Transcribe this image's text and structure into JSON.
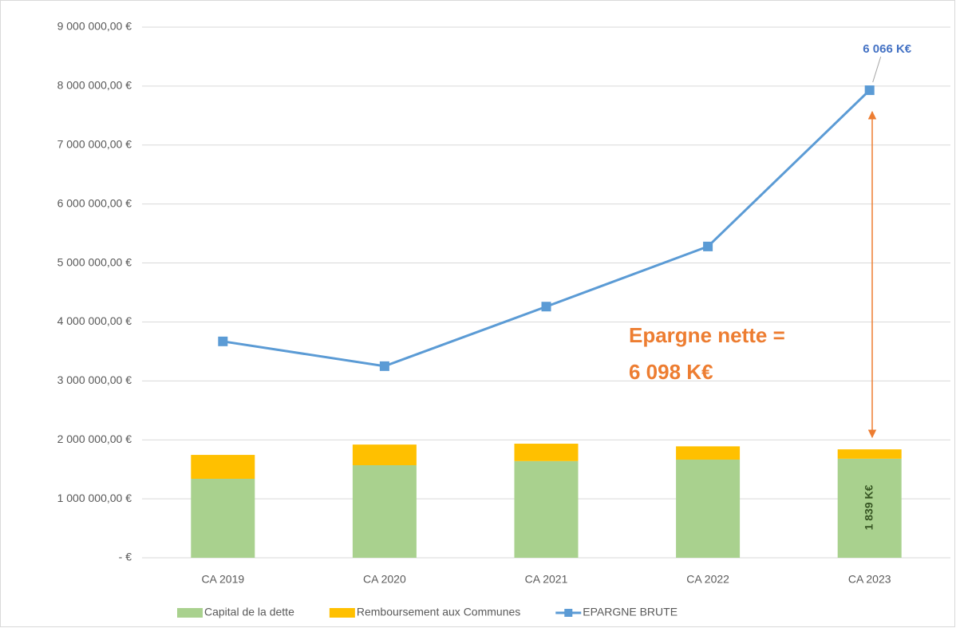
{
  "chart_data": {
    "type": "bar-line",
    "categories": [
      "CA 2019",
      "CA 2020",
      "CA 2021",
      "CA 2022",
      "CA 2023"
    ],
    "series": [
      {
        "name": "Capital de la dette",
        "color": "#a9d18e",
        "type": "bar",
        "values": [
          1340000,
          1570000,
          1640000,
          1665000,
          1680000
        ]
      },
      {
        "name": "Remboursement aux Communes",
        "color": "#ffc000",
        "type": "bar",
        "values": [
          405000,
          350000,
          295000,
          225000,
          159000
        ]
      },
      {
        "name": "EPARGNE BRUTE",
        "color": "#5b9bd5",
        "type": "line",
        "values": [
          3670000,
          3250000,
          4260000,
          5280000,
          7930000
        ]
      }
    ],
    "ylim": [
      0,
      9000000
    ],
    "yticks": [
      {
        "value": 0,
        "label": "-   €"
      },
      {
        "value": 1000000,
        "label": "1 000 000,00 €"
      },
      {
        "value": 2000000,
        "label": "2 000 000,00 €"
      },
      {
        "value": 3000000,
        "label": "3 000 000,00 €"
      },
      {
        "value": 4000000,
        "label": "4 000 000,00 €"
      },
      {
        "value": 5000000,
        "label": "5 000 000,00 €"
      },
      {
        "value": 6000000,
        "label": "6 000 000,00 €"
      },
      {
        "value": 7000000,
        "label": "7 000 000,00 €"
      },
      {
        "value": 8000000,
        "label": "8 000 000,00 €"
      },
      {
        "value": 9000000,
        "label": "9 000 000,00 €"
      }
    ],
    "grid": true,
    "legend": "bottom",
    "annotations": [
      "6 066 K€",
      "Epargne nette =",
      "6 098 K€",
      "1 839 K€"
    ]
  }
}
